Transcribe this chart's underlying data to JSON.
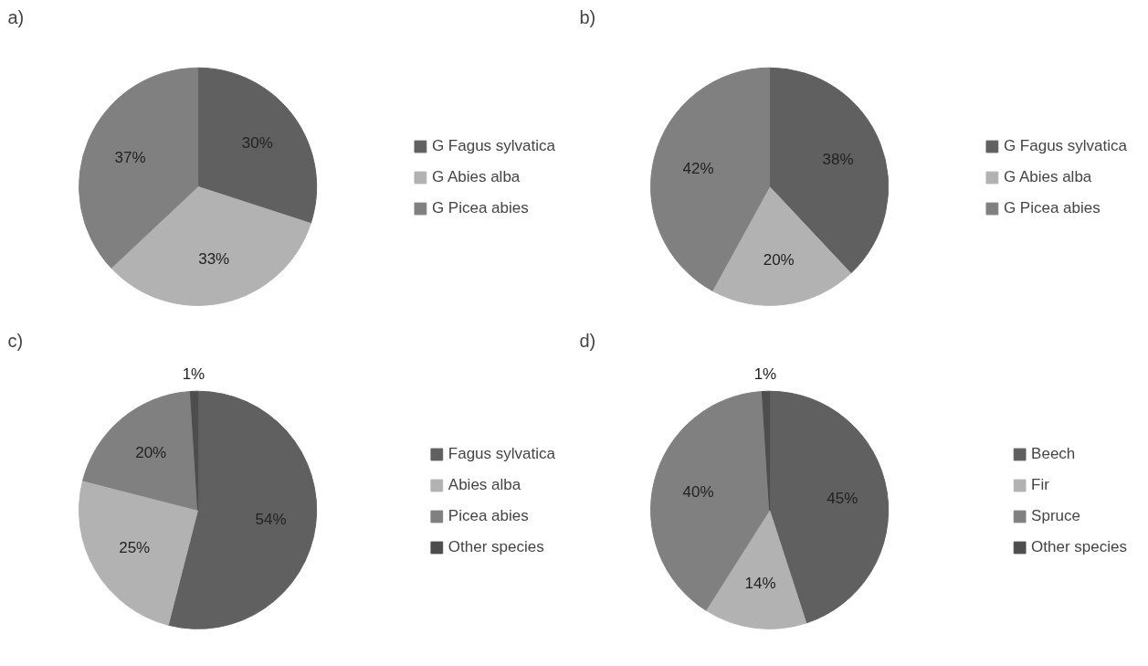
{
  "chart_data": [
    {
      "type": "pie",
      "title": "a)",
      "categories": [
        "G Fagus sylvatica",
        "G Abies alba",
        "G Picea abies"
      ],
      "values": [
        30,
        33,
        37
      ],
      "colors": [
        "#606060",
        "#b2b2b2",
        "#808080"
      ],
      "value_labels": [
        "30%",
        "33%",
        "37%"
      ],
      "legend": "right"
    },
    {
      "type": "pie",
      "title": "b)",
      "categories": [
        "G Fagus sylvatica",
        "G Abies alba",
        "G Picea abies"
      ],
      "values": [
        38,
        20,
        42
      ],
      "colors": [
        "#606060",
        "#b2b2b2",
        "#808080"
      ],
      "value_labels": [
        "38%",
        "20%",
        "42%"
      ],
      "legend": "right"
    },
    {
      "type": "pie",
      "title": "c)",
      "categories": [
        "Fagus sylvatica",
        "Abies alba",
        "Picea abies",
        "Other species"
      ],
      "values": [
        54,
        25,
        20,
        1
      ],
      "colors": [
        "#606060",
        "#b2b2b2",
        "#808080",
        "#4d4d4d"
      ],
      "value_labels": [
        "54%",
        "25%",
        "20%",
        "1%"
      ],
      "legend": "right"
    },
    {
      "type": "pie",
      "title": "d)",
      "categories": [
        "Beech",
        "Fir",
        "Spruce",
        "Other species"
      ],
      "values": [
        45,
        14,
        40,
        1
      ],
      "colors": [
        "#606060",
        "#b2b2b2",
        "#808080",
        "#4d4d4d"
      ],
      "value_labels": [
        "45%",
        "14%",
        "40%",
        "1%"
      ],
      "legend": "right"
    }
  ]
}
